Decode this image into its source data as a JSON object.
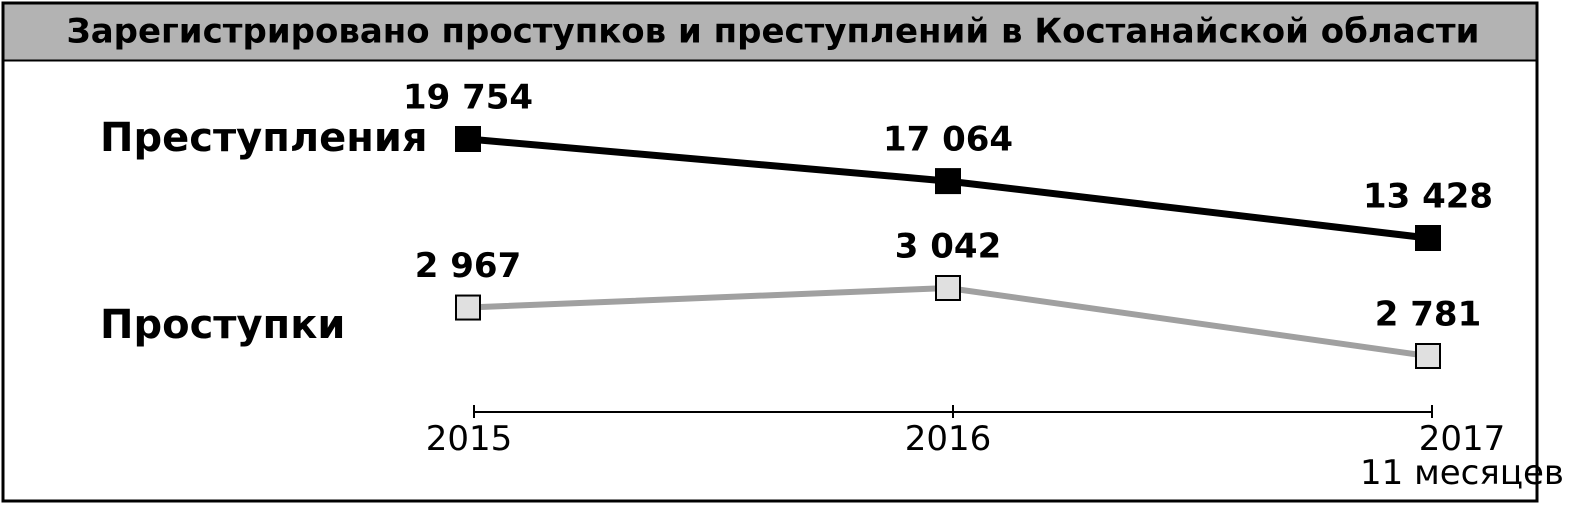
{
  "chart_data": {
    "type": "line",
    "title": "Зарегистрировано проступков и преступлений в Костанайской области",
    "categories": [
      "2015",
      "2016",
      "2017\n11 месяцев"
    ],
    "series": [
      {
        "name": "Преступления",
        "color": "#000000",
        "marker_color": "#000000",
        "values": [
          19754,
          17064,
          13428
        ],
        "value_labels": [
          "19 754",
          "17 064",
          "13 428"
        ]
      },
      {
        "name": "Проступки",
        "color": "#a0a0a0",
        "marker_color": "#e0e0e0",
        "values": [
          2967,
          3042,
          2781
        ],
        "value_labels": [
          "2 967",
          "3 042",
          "2 781"
        ]
      }
    ]
  }
}
